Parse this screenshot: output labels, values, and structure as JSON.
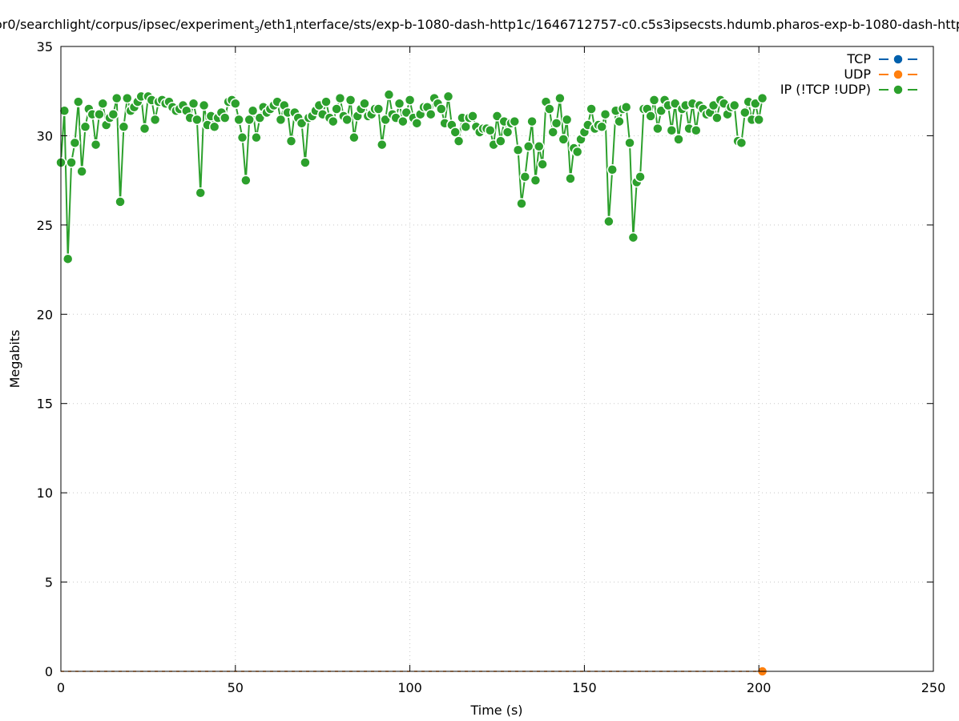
{
  "chart_data": {
    "type": "line",
    "title_pre": "or0/searchlight/corpus/ipsec/experiment",
    "title_sub1": "3",
    "title_mid": "/eth1",
    "title_sub2": "i",
    "title_post": "nterface/sts/exp-b-1080-dash-http1c/1646712757-c0.c5s3ipsecsts.hdumb.pharos-exp-b-1080-dash-http",
    "xlabel": "Time (s)",
    "ylabel": "Megabits",
    "xlim": [
      0,
      250
    ],
    "ylim": [
      0,
      35
    ],
    "x_ticks": [
      "0",
      "50",
      "100",
      "150",
      "200",
      "250"
    ],
    "y_ticks": [
      "0",
      "5",
      "10",
      "15",
      "20",
      "25",
      "30",
      "35"
    ],
    "grid": true,
    "legend_position": "top-right",
    "series": [
      {
        "name": "TCP",
        "color": "#0060ad",
        "points": []
      },
      {
        "name": "UDP",
        "color": "#ff7f0e",
        "points": [
          [
            201,
            0
          ]
        ]
      },
      {
        "name": "IP (!TCP  !UDP)",
        "color": "#2ca02c",
        "points": [
          [
            0,
            28.5
          ],
          [
            1,
            31.4
          ],
          [
            2,
            23.1
          ],
          [
            3,
            28.5
          ],
          [
            4,
            29.6
          ],
          [
            5,
            31.9
          ],
          [
            6,
            28.0
          ],
          [
            7,
            30.5
          ],
          [
            8,
            31.5
          ],
          [
            9,
            31.2
          ],
          [
            10,
            29.5
          ],
          [
            11,
            31.2
          ],
          [
            12,
            31.8
          ],
          [
            13,
            30.6
          ],
          [
            14,
            31.0
          ],
          [
            15,
            31.2
          ],
          [
            16,
            32.1
          ],
          [
            17,
            26.3
          ],
          [
            18,
            30.5
          ],
          [
            19,
            32.1
          ],
          [
            20,
            31.4
          ],
          [
            21,
            31.6
          ],
          [
            22,
            31.9
          ],
          [
            23,
            32.2
          ],
          [
            24,
            30.4
          ],
          [
            25,
            32.2
          ],
          [
            26,
            32.0
          ],
          [
            27,
            30.9
          ],
          [
            28,
            31.9
          ],
          [
            29,
            32.0
          ],
          [
            30,
            31.8
          ],
          [
            31,
            31.9
          ],
          [
            32,
            31.6
          ],
          [
            33,
            31.4
          ],
          [
            34,
            31.5
          ],
          [
            35,
            31.7
          ],
          [
            36,
            31.4
          ],
          [
            37,
            31.0
          ],
          [
            38,
            31.8
          ],
          [
            39,
            30.9
          ],
          [
            40,
            26.8
          ],
          [
            41,
            31.7
          ],
          [
            42,
            30.6
          ],
          [
            43,
            31.1
          ],
          [
            44,
            30.5
          ],
          [
            45,
            31.0
          ],
          [
            46,
            31.3
          ],
          [
            47,
            31.0
          ],
          [
            48,
            31.9
          ],
          [
            49,
            32.0
          ],
          [
            50,
            31.8
          ],
          [
            51,
            30.9
          ],
          [
            52,
            29.9
          ],
          [
            53,
            27.5
          ],
          [
            54,
            30.9
          ],
          [
            55,
            31.4
          ],
          [
            56,
            29.9
          ],
          [
            57,
            31.0
          ],
          [
            58,
            31.6
          ],
          [
            59,
            31.3
          ],
          [
            60,
            31.5
          ],
          [
            61,
            31.7
          ],
          [
            62,
            31.9
          ],
          [
            63,
            30.9
          ],
          [
            64,
            31.7
          ],
          [
            65,
            31.3
          ],
          [
            66,
            29.7
          ],
          [
            67,
            31.3
          ],
          [
            68,
            31.0
          ],
          [
            69,
            30.7
          ],
          [
            70,
            28.5
          ],
          [
            71,
            31.0
          ],
          [
            72,
            31.1
          ],
          [
            73,
            31.4
          ],
          [
            74,
            31.7
          ],
          [
            75,
            31.2
          ],
          [
            76,
            31.9
          ],
          [
            77,
            31.0
          ],
          [
            78,
            30.8
          ],
          [
            79,
            31.5
          ],
          [
            80,
            32.1
          ],
          [
            81,
            31.1
          ],
          [
            82,
            30.9
          ],
          [
            83,
            32.0
          ],
          [
            84,
            29.9
          ],
          [
            85,
            31.1
          ],
          [
            86,
            31.5
          ],
          [
            87,
            31.8
          ],
          [
            88,
            31.1
          ],
          [
            89,
            31.2
          ],
          [
            90,
            31.5
          ],
          [
            91,
            31.5
          ],
          [
            92,
            29.5
          ],
          [
            93,
            30.9
          ],
          [
            94,
            32.3
          ],
          [
            95,
            31.2
          ],
          [
            96,
            31.0
          ],
          [
            97,
            31.8
          ],
          [
            98,
            30.8
          ],
          [
            99,
            31.3
          ],
          [
            100,
            32.0
          ],
          [
            101,
            31.0
          ],
          [
            102,
            30.7
          ],
          [
            103,
            31.2
          ],
          [
            104,
            31.6
          ],
          [
            105,
            31.6
          ],
          [
            106,
            31.2
          ],
          [
            107,
            32.1
          ],
          [
            108,
            31.8
          ],
          [
            109,
            31.5
          ],
          [
            110,
            30.7
          ],
          [
            111,
            32.2
          ],
          [
            112,
            30.6
          ],
          [
            113,
            30.2
          ],
          [
            114,
            29.7
          ],
          [
            115,
            31.0
          ],
          [
            116,
            30.5
          ],
          [
            117,
            31.0
          ],
          [
            118,
            31.1
          ],
          [
            119,
            30.5
          ],
          [
            120,
            30.2
          ],
          [
            121,
            30.4
          ],
          [
            122,
            30.4
          ],
          [
            123,
            30.3
          ],
          [
            124,
            29.5
          ],
          [
            125,
            31.1
          ],
          [
            126,
            29.7
          ],
          [
            127,
            30.8
          ],
          [
            128,
            30.2
          ],
          [
            129,
            30.7
          ],
          [
            130,
            30.8
          ],
          [
            131,
            29.2
          ],
          [
            132,
            26.2
          ],
          [
            133,
            27.7
          ],
          [
            134,
            29.4
          ],
          [
            135,
            30.8
          ],
          [
            136,
            27.5
          ],
          [
            137,
            29.4
          ],
          [
            138,
            28.4
          ],
          [
            139,
            31.9
          ],
          [
            140,
            31.5
          ],
          [
            141,
            30.2
          ],
          [
            142,
            30.7
          ],
          [
            143,
            32.1
          ],
          [
            144,
            29.8
          ],
          [
            145,
            30.9
          ],
          [
            146,
            27.6
          ],
          [
            147,
            29.3
          ],
          [
            148,
            29.1
          ],
          [
            149,
            29.8
          ],
          [
            150,
            30.2
          ],
          [
            151,
            30.6
          ],
          [
            152,
            31.5
          ],
          [
            153,
            30.4
          ],
          [
            154,
            30.6
          ],
          [
            155,
            30.5
          ],
          [
            156,
            31.2
          ],
          [
            157,
            25.2
          ],
          [
            158,
            28.1
          ],
          [
            159,
            31.4
          ],
          [
            160,
            30.8
          ],
          [
            161,
            31.5
          ],
          [
            162,
            31.6
          ],
          [
            163,
            29.6
          ],
          [
            164,
            24.3
          ],
          [
            165,
            27.4
          ],
          [
            166,
            27.7
          ],
          [
            167,
            31.5
          ],
          [
            168,
            31.5
          ],
          [
            169,
            31.1
          ],
          [
            170,
            32.0
          ],
          [
            171,
            30.4
          ],
          [
            172,
            31.4
          ],
          [
            173,
            32.0
          ],
          [
            174,
            31.7
          ],
          [
            175,
            30.3
          ],
          [
            176,
            31.8
          ],
          [
            177,
            29.8
          ],
          [
            178,
            31.5
          ],
          [
            179,
            31.7
          ],
          [
            180,
            30.4
          ],
          [
            181,
            31.8
          ],
          [
            182,
            30.3
          ],
          [
            183,
            31.7
          ],
          [
            184,
            31.5
          ],
          [
            185,
            31.2
          ],
          [
            186,
            31.3
          ],
          [
            187,
            31.7
          ],
          [
            188,
            31.0
          ],
          [
            189,
            32.0
          ],
          [
            190,
            31.8
          ],
          [
            191,
            31.2
          ],
          [
            192,
            31.6
          ],
          [
            193,
            31.7
          ],
          [
            194,
            29.7
          ],
          [
            195,
            29.6
          ],
          [
            196,
            31.3
          ],
          [
            197,
            31.9
          ],
          [
            198,
            30.9
          ],
          [
            199,
            31.8
          ],
          [
            200,
            30.9
          ],
          [
            201,
            32.1
          ]
        ]
      }
    ]
  }
}
